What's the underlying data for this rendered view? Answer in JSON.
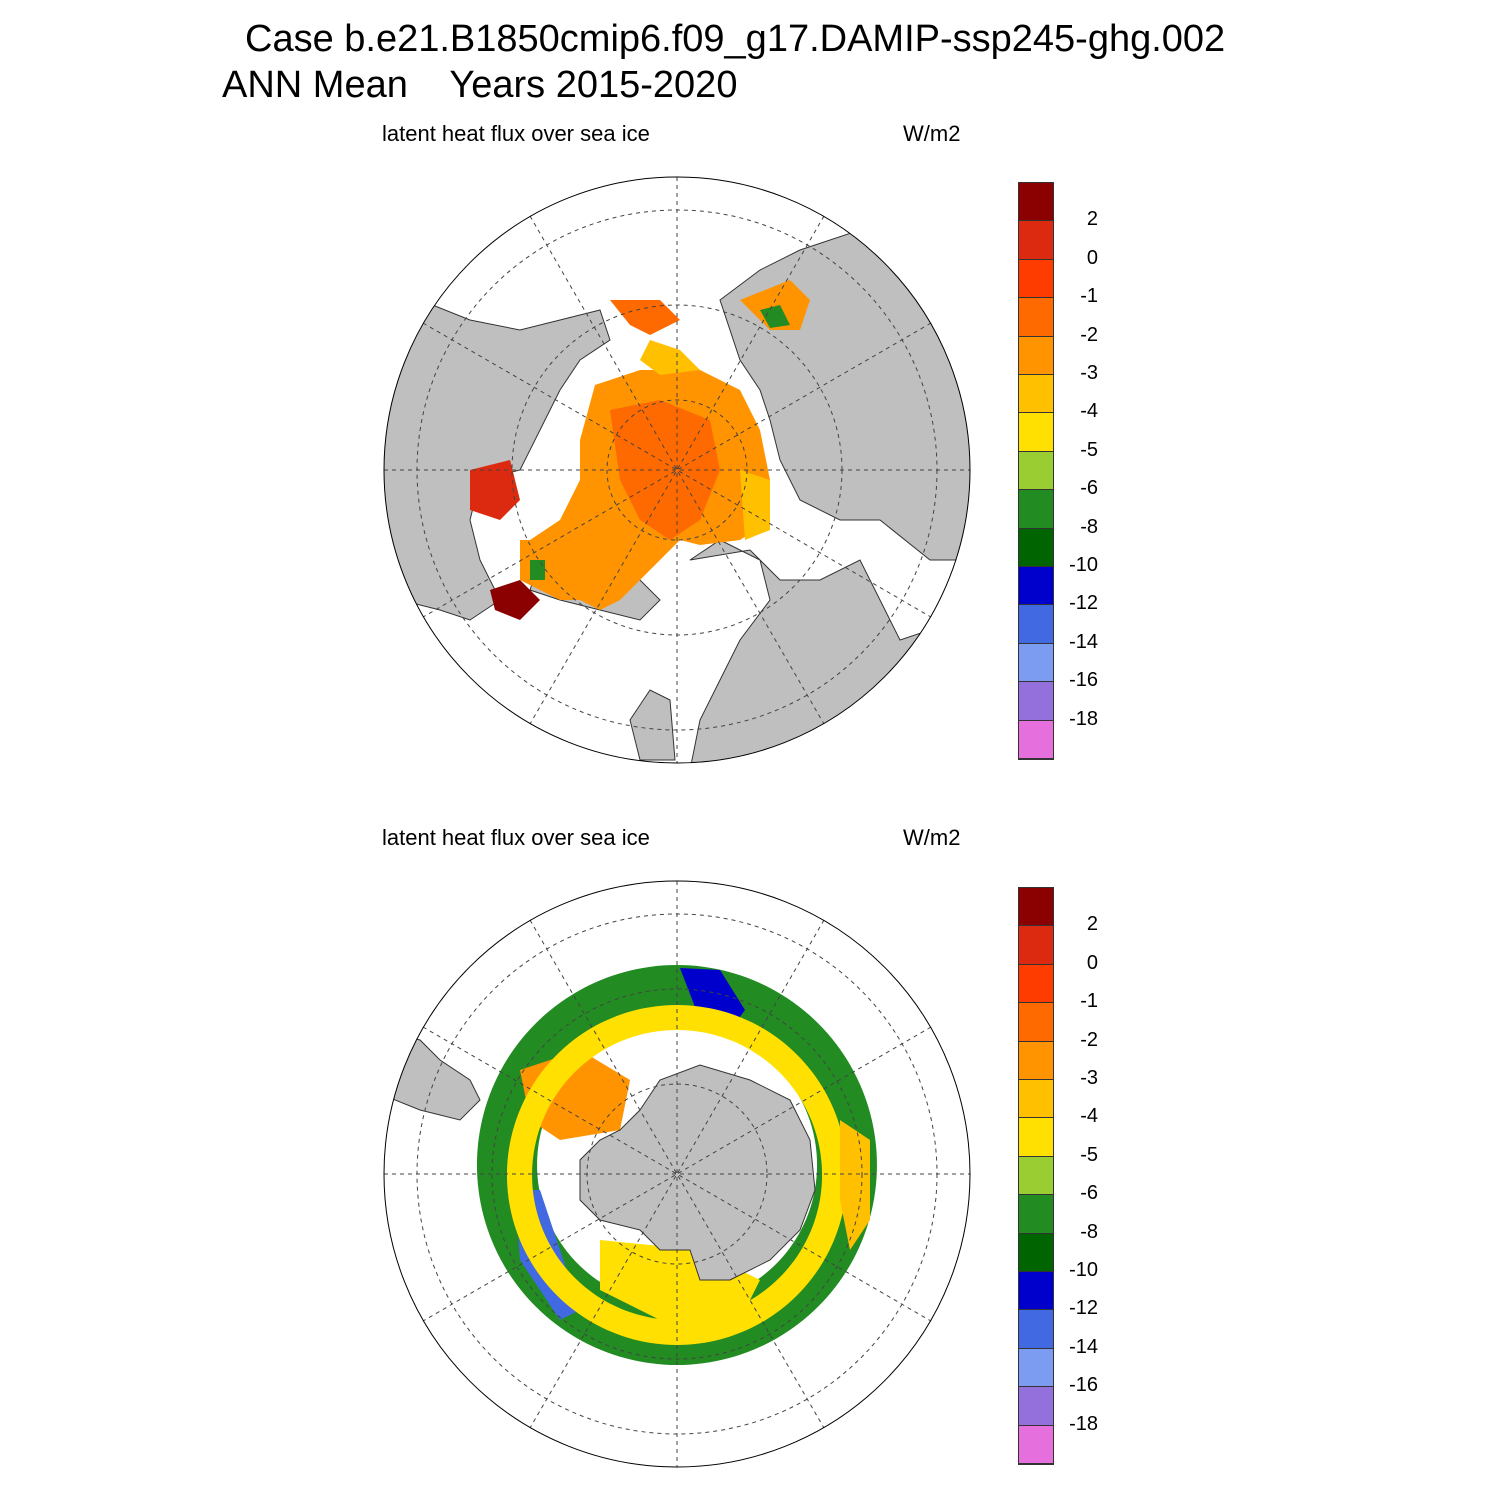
{
  "title": {
    "line1": "Case b.e21.B1850cmip6.f09_g17.DAMIP-ssp245-ghg.002",
    "line2": "ANN Mean    Years 2015-2020"
  },
  "panels": [
    {
      "id": "north",
      "hemisphere": "Northern Hemisphere (polar stereographic)",
      "left_label": "latent heat flux over sea ice",
      "right_label": "W/m2"
    },
    {
      "id": "south",
      "hemisphere": "Southern Hemisphere (polar stereographic)",
      "left_label": "latent heat flux over sea ice",
      "right_label": "W/m2"
    }
  ],
  "colorbar": {
    "units": "W/m2",
    "colors": [
      "#e46fdd",
      "#9370db",
      "#7b9cf0",
      "#4169e1",
      "#0000cd",
      "#006400",
      "#228b22",
      "#9acd32",
      "#ffe000",
      "#ffc000",
      "#ff9400",
      "#ff6a00",
      "#ff3c00",
      "#dc2a10",
      "#8b0000"
    ],
    "labels": [
      "-18",
      "-16",
      "-14",
      "-12",
      "-10",
      "-8",
      "-6",
      "-5",
      "-4",
      "-3",
      "-2",
      "-1",
      "0",
      "2"
    ]
  },
  "map_colors": {
    "land": "#bfbfbf",
    "coast": "#333333",
    "grid": "#444444"
  }
}
